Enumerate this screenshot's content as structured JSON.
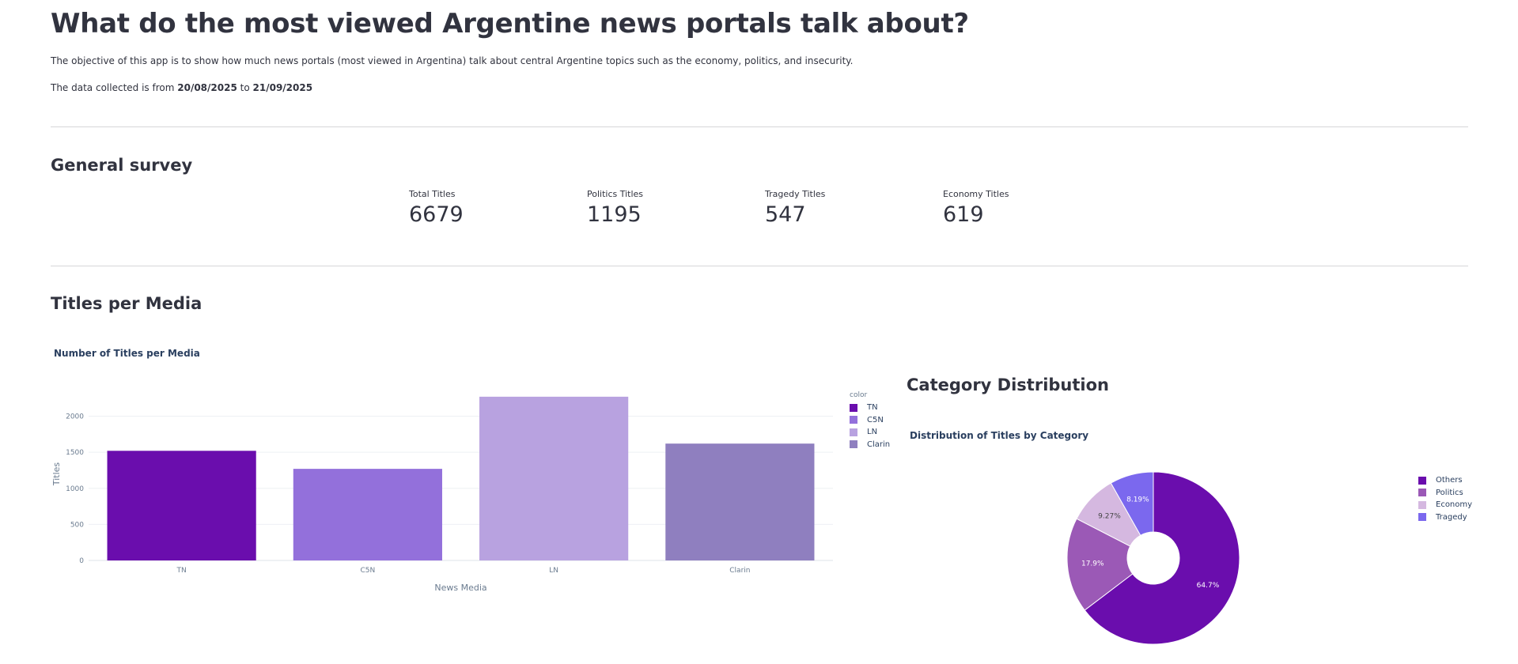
{
  "page": {
    "title": "What do the most viewed Argentine news portals talk about?",
    "description": "The objective of this app is to show how much news portals (most viewed in Argentina) talk about central Argentine topics such as the economy, politics, and insecurity.",
    "data_range": {
      "prefix": "The data collected is from",
      "start": "20/08/2025",
      "connector": "to",
      "end": "21/09/2025"
    }
  },
  "survey": {
    "title": "General survey",
    "metrics": [
      {
        "label": "Total Titles",
        "value": "6679"
      },
      {
        "label": "Politics Titles",
        "value": "1195"
      },
      {
        "label": "Tragedy Titles",
        "value": "547"
      },
      {
        "label": "Economy Titles",
        "value": "619"
      }
    ]
  },
  "media_section": {
    "title": "Titles per Media",
    "category_title": "Category Distribution"
  },
  "chart_data": [
    {
      "type": "bar",
      "title": "Number of Titles per Media",
      "xlabel": "News Media",
      "ylabel": "Titles",
      "categories": [
        "TN",
        "C5N",
        "LN",
        "Clarin"
      ],
      "values": [
        1520,
        1270,
        2270,
        1620
      ],
      "colors": [
        "#6a0dad",
        "#9370db",
        "#b8a2e0",
        "#8f7fbf"
      ],
      "ylim": [
        0,
        2400
      ],
      "yticks": [
        0,
        500,
        1000,
        1500,
        2000
      ],
      "grid": true,
      "legend": {
        "title": "color",
        "position": "right",
        "entries": [
          "TN",
          "C5N",
          "LN",
          "Clarin"
        ]
      }
    },
    {
      "type": "pie",
      "title": "Distribution of Titles by Category",
      "hole": true,
      "labels": [
        "Others",
        "Politics",
        "Economy",
        "Tragedy"
      ],
      "values": [
        64.7,
        17.9,
        9.27,
        8.19
      ],
      "display": [
        "64.7%",
        "17.9%",
        "9.27%",
        "8.19%"
      ],
      "colors": [
        "#6a0dad",
        "#9b59b6",
        "#d5b8e0",
        "#7b68ee"
      ],
      "label_colors": [
        "#ffffff",
        "#ffffff",
        "#444444",
        "#ffffff"
      ],
      "legend": {
        "position": "right",
        "entries": [
          "Others",
          "Politics",
          "Economy",
          "Tragedy"
        ]
      }
    }
  ]
}
